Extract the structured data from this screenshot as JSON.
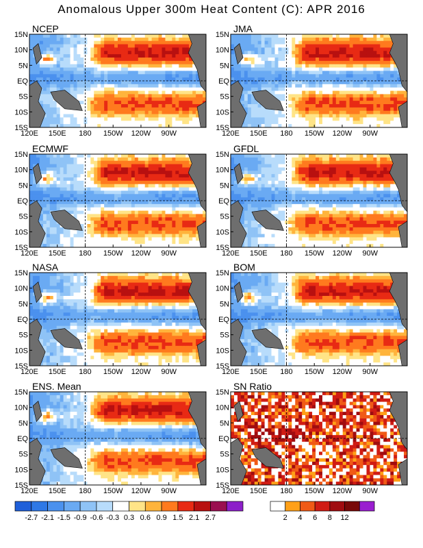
{
  "title": "Anomalous Upper 300m Heat Content (C): APR 2016",
  "chart_data": {
    "type": "heatmap",
    "lon_ticks": [
      "120E",
      "150E",
      "180",
      "150W",
      "120W",
      "90W"
    ],
    "lat_ticks": [
      "15N",
      "10N",
      "5N",
      "EQ",
      "5S",
      "10S",
      "15S"
    ],
    "panels": [
      {
        "title": "NCEP"
      },
      {
        "title": "JMA"
      },
      {
        "title": "ECMWF"
      },
      {
        "title": "GFDL"
      },
      {
        "title": "NASA"
      },
      {
        "title": "BOM"
      },
      {
        "title": "ENS. Mean"
      },
      {
        "title": "SN Ratio"
      }
    ],
    "anomaly_colorbar": {
      "labels": [
        "-2.7",
        "-2.1",
        "-1.5",
        "-0.9",
        "-0.6",
        "-0.3",
        "0.3",
        "0.6",
        "0.9",
        "1.5",
        "2.1",
        "2.7"
      ],
      "colors": [
        "#1f5fd9",
        "#2e78e6",
        "#4b91ee",
        "#6aaaf3",
        "#8fc3f6",
        "#b8dcfb",
        "#ffffff",
        "#ffe487",
        "#ffb43c",
        "#ff7a1e",
        "#e82a14",
        "#b81010",
        "#9a1050"
      ],
      "end_color": "#8c1fc9"
    },
    "snr_colorbar": {
      "labels": [
        "2",
        "4",
        "6",
        "8",
        "12"
      ],
      "colors": [
        "#ffffff",
        "#ffa018",
        "#f05a16",
        "#d01c14",
        "#a00c10",
        "#780808",
        "#9a1ed0"
      ]
    }
  }
}
